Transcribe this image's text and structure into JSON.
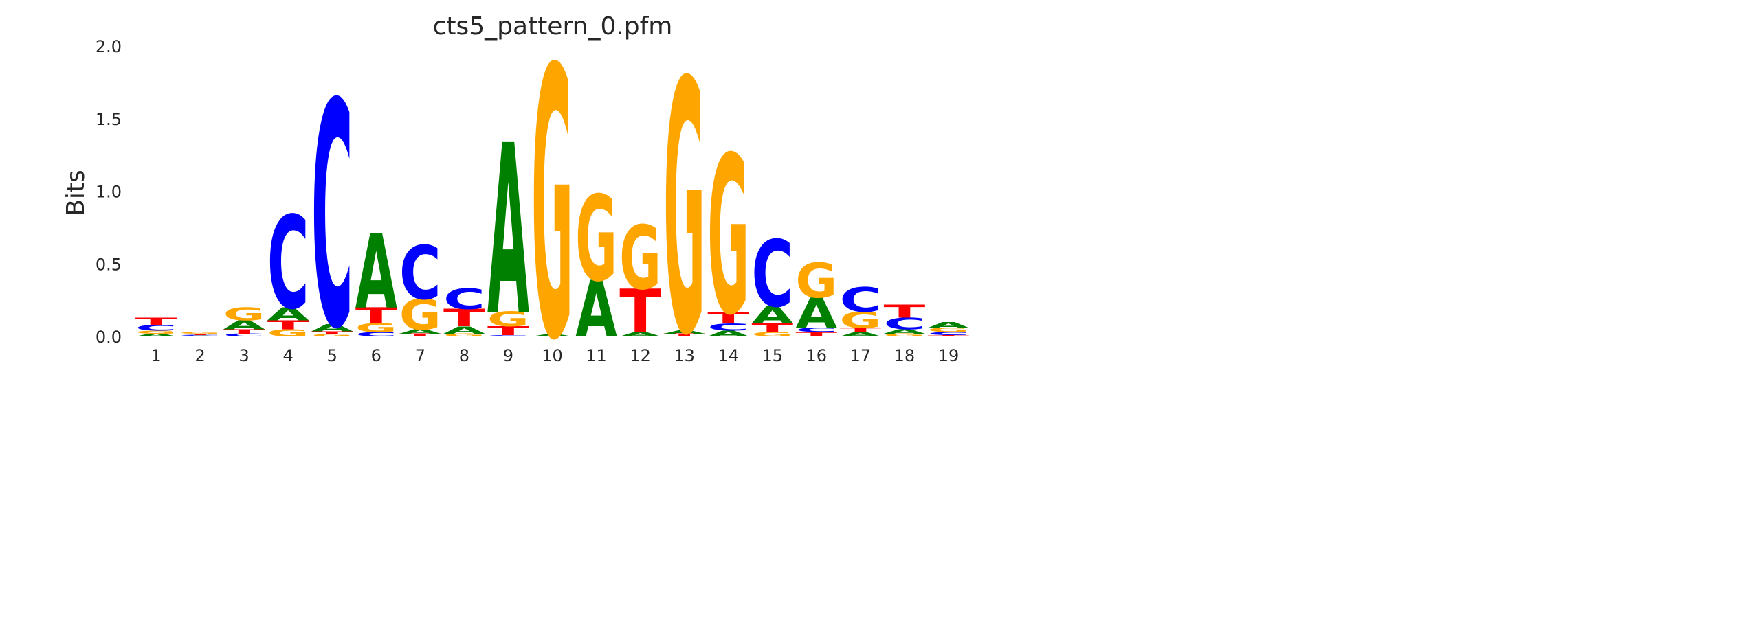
{
  "chart_data": {
    "type": "sequence-logo",
    "title": "cts5_pattern_0.pfm",
    "ylabel": "Bits",
    "xlabel": "",
    "ylim": [
      0,
      2.0
    ],
    "yticks": [
      "0.0",
      "0.5",
      "1.0",
      "1.5",
      "2.0"
    ],
    "grid": false,
    "legend": "none",
    "colors": {
      "A": "#008000",
      "C": "#0000ff",
      "G": "#ffa500",
      "T": "#ff0000"
    },
    "positions": [
      {
        "x": 1,
        "stack": [
          [
            "A",
            0.02
          ],
          [
            "G",
            0.02
          ],
          [
            "C",
            0.04
          ],
          [
            "T",
            0.05
          ]
        ]
      },
      {
        "x": 2,
        "stack": [
          [
            "A",
            0.005
          ],
          [
            "C",
            0.005
          ],
          [
            "T",
            0.008
          ],
          [
            "G",
            0.012
          ]
        ]
      },
      {
        "x": 3,
        "stack": [
          [
            "C",
            0.02
          ],
          [
            "T",
            0.03
          ],
          [
            "A",
            0.06
          ],
          [
            "G",
            0.09
          ]
        ]
      },
      {
        "x": 4,
        "stack": [
          [
            "G",
            0.05
          ],
          [
            "T",
            0.06
          ],
          [
            "A",
            0.09
          ],
          [
            "C",
            0.64
          ]
        ]
      },
      {
        "x": 5,
        "stack": [
          [
            "G",
            0.015
          ],
          [
            "T",
            0.02
          ],
          [
            "A",
            0.05
          ],
          [
            "C",
            1.55
          ]
        ]
      },
      {
        "x": 6,
        "stack": [
          [
            "C",
            0.03
          ],
          [
            "G",
            0.06
          ],
          [
            "T",
            0.11
          ],
          [
            "A",
            0.51
          ]
        ]
      },
      {
        "x": 7,
        "stack": [
          [
            "T",
            0.02
          ],
          [
            "A",
            0.03
          ],
          [
            "G",
            0.21
          ],
          [
            "C",
            0.37
          ]
        ]
      },
      {
        "x": 8,
        "stack": [
          [
            "G",
            0.02
          ],
          [
            "A",
            0.05
          ],
          [
            "T",
            0.12
          ],
          [
            "C",
            0.14
          ]
        ]
      },
      {
        "x": 9,
        "stack": [
          [
            "C",
            0.01
          ],
          [
            "T",
            0.06
          ],
          [
            "G",
            0.1
          ],
          [
            "A",
            1.17
          ]
        ]
      },
      {
        "x": 10,
        "stack": [
          [
            "A",
            0.015
          ],
          [
            "G",
            1.86
          ]
        ]
      },
      {
        "x": 11,
        "stack": [
          [
            "A",
            0.39
          ],
          [
            "G",
            0.59
          ]
        ]
      },
      {
        "x": 12,
        "stack": [
          [
            "A",
            0.03
          ],
          [
            "T",
            0.3
          ],
          [
            "G",
            0.44
          ]
        ]
      },
      {
        "x": 13,
        "stack": [
          [
            "T",
            0.02
          ],
          [
            "A",
            0.025
          ],
          [
            "G",
            1.74
          ]
        ]
      },
      {
        "x": 14,
        "stack": [
          [
            "A",
            0.04
          ],
          [
            "C",
            0.05
          ],
          [
            "T",
            0.08
          ],
          [
            "G",
            1.09
          ]
        ]
      },
      {
        "x": 15,
        "stack": [
          [
            "G",
            0.03
          ],
          [
            "T",
            0.06
          ],
          [
            "A",
            0.12
          ],
          [
            "C",
            0.46
          ]
        ]
      },
      {
        "x": 16,
        "stack": [
          [
            "T",
            0.03
          ],
          [
            "C",
            0.03
          ],
          [
            "A",
            0.21
          ],
          [
            "G",
            0.24
          ]
        ]
      },
      {
        "x": 17,
        "stack": [
          [
            "A",
            0.03
          ],
          [
            "T",
            0.03
          ],
          [
            "G",
            0.11
          ],
          [
            "C",
            0.17
          ]
        ]
      },
      {
        "x": 18,
        "stack": [
          [
            "G",
            0.02
          ],
          [
            "A",
            0.03
          ],
          [
            "C",
            0.08
          ],
          [
            "T",
            0.09
          ]
        ]
      },
      {
        "x": 19,
        "stack": [
          [
            "T",
            0.01
          ],
          [
            "C",
            0.02
          ],
          [
            "G",
            0.03
          ],
          [
            "A",
            0.04
          ]
        ]
      }
    ]
  }
}
